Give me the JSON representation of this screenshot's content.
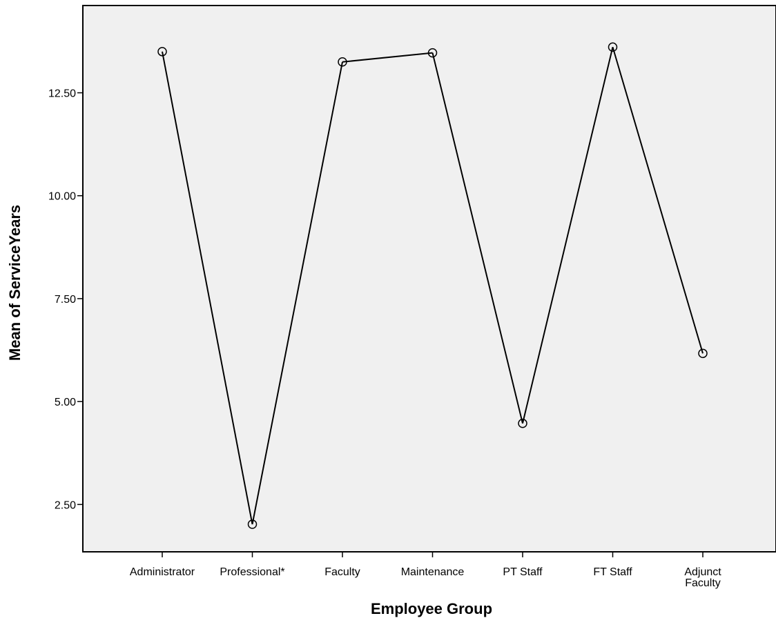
{
  "chart_data": {
    "type": "line",
    "title": "",
    "xlabel": "Employee Group",
    "ylabel": "Mean of ServiceYears",
    "categories": [
      "Administrator",
      "Professional*",
      "Faculty",
      "Maintenance",
      "PT Staff",
      "FT Staff",
      "Adjunct Faculty"
    ],
    "category_lines": [
      [
        "Administrator"
      ],
      [
        "Professional*"
      ],
      [
        "Faculty"
      ],
      [
        "Maintenance"
      ],
      [
        "PT Staff"
      ],
      [
        "FT Staff"
      ],
      [
        "Adjunct",
        "Faculty"
      ]
    ],
    "values": [
      13.5,
      2.02,
      13.25,
      13.47,
      4.47,
      13.61,
      6.17
    ],
    "connected_segments": [
      [
        0,
        1
      ],
      [
        1,
        2
      ],
      [
        2,
        3
      ],
      [
        3,
        4
      ],
      [
        4,
        5
      ],
      [
        5,
        6
      ]
    ],
    "ylim": [
      1.35,
      14.62
    ],
    "yticks": [
      2.5,
      5.0,
      7.5,
      10.0,
      12.5
    ],
    "ytick_labels": [
      "2.50",
      "5.00",
      "7.50",
      "10.00",
      "12.50"
    ],
    "grid": false,
    "legend": "none",
    "colors": {
      "plot_background": "#f0f0f0",
      "line": "#000000",
      "marker_stroke": "#000000",
      "axis": "#000000"
    }
  }
}
